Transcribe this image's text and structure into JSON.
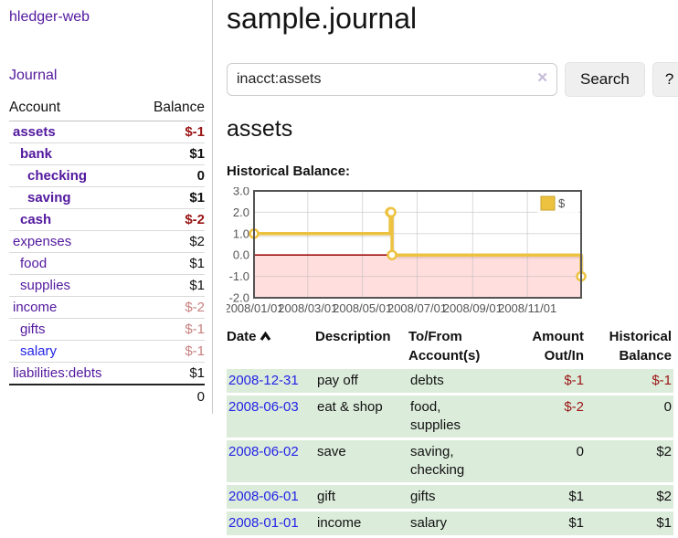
{
  "colors": {
    "link_purple": "#52189E",
    "link_blue": "#2323E6",
    "negative_strong": "#9a1414",
    "negative_soft": "#c88080",
    "row_green": "#dcecdb",
    "chart_line_gold": "#EDC240"
  },
  "sidebar": {
    "brand": "hledger-web",
    "journal_link": "Journal",
    "accounts": {
      "col_account": "Account",
      "col_balance": "Balance",
      "rows": [
        {
          "name": "assets",
          "balance": "$-1"
        },
        {
          "name": "bank",
          "balance": "$1"
        },
        {
          "name": "checking",
          "balance": "0"
        },
        {
          "name": "saving",
          "balance": "$1"
        },
        {
          "name": "cash",
          "balance": "$-2"
        },
        {
          "name": "expenses",
          "balance": "$2"
        },
        {
          "name": "food",
          "balance": "$1"
        },
        {
          "name": "supplies",
          "balance": "$1"
        },
        {
          "name": "income",
          "balance": "$-2"
        },
        {
          "name": "gifts",
          "balance": "$-1"
        },
        {
          "name": "salary",
          "balance": "$-1"
        },
        {
          "name": "liabilities:debts",
          "balance": "$1"
        }
      ],
      "total": "0"
    }
  },
  "main": {
    "title": "sample.journal",
    "search": {
      "value": "inacct:assets",
      "clear": "✕",
      "button": "Search",
      "help": "?"
    },
    "account_heading": "assets",
    "chart_heading": "Historical Balance:"
  },
  "chart_data": {
    "type": "line",
    "step": true,
    "title": "Historical Balance",
    "xlabel": "",
    "ylabel": "",
    "x_range": [
      "2008/01/01",
      "2008/12/31"
    ],
    "ylim": [
      -2,
      3
    ],
    "yticks": [
      3.0,
      2.0,
      1.0,
      0.0,
      -1.0,
      -2.0
    ],
    "xticks": [
      "2008/01/01",
      "2008/03/01",
      "2008/05/01",
      "2008/07/01",
      "2008/09/01",
      "2008/11/01"
    ],
    "series": [
      {
        "name": "$",
        "color": "#EDC240",
        "points": [
          {
            "x": "2008/01/01",
            "y": 1
          },
          {
            "x": "2008/06/01",
            "y": 2
          },
          {
            "x": "2008/06/02",
            "y": 2
          },
          {
            "x": "2008/06/03",
            "y": 0
          },
          {
            "x": "2008/12/31",
            "y": -1
          }
        ]
      }
    ],
    "legend": {
      "position": "top-right",
      "entries": [
        "$"
      ]
    },
    "grid": true,
    "negative_fill": "#ffdedd",
    "zero_line_color": "#a01313",
    "axis_text_color": "#545454"
  },
  "register": {
    "headers": {
      "date": "Date",
      "description": "Description",
      "tofrom": "To/From Account(s)",
      "amount": "Amount Out/In",
      "balance": "Historical Balance"
    },
    "rows": [
      {
        "date": "2008-12-31",
        "description": "pay off",
        "accounts": "debts",
        "amount": "$-1",
        "balance": "$-1"
      },
      {
        "date": "2008-06-03",
        "description": "eat & shop",
        "accounts": "food, supplies",
        "amount": "$-2",
        "balance": "0"
      },
      {
        "date": "2008-06-02",
        "description": "save",
        "accounts": "saving, checking",
        "amount": "0",
        "balance": "$2"
      },
      {
        "date": "2008-06-01",
        "description": "gift",
        "accounts": "gifts",
        "amount": "$1",
        "balance": "$2"
      },
      {
        "date": "2008-01-01",
        "description": "income",
        "accounts": "salary",
        "amount": "$1",
        "balance": "$1"
      }
    ]
  }
}
